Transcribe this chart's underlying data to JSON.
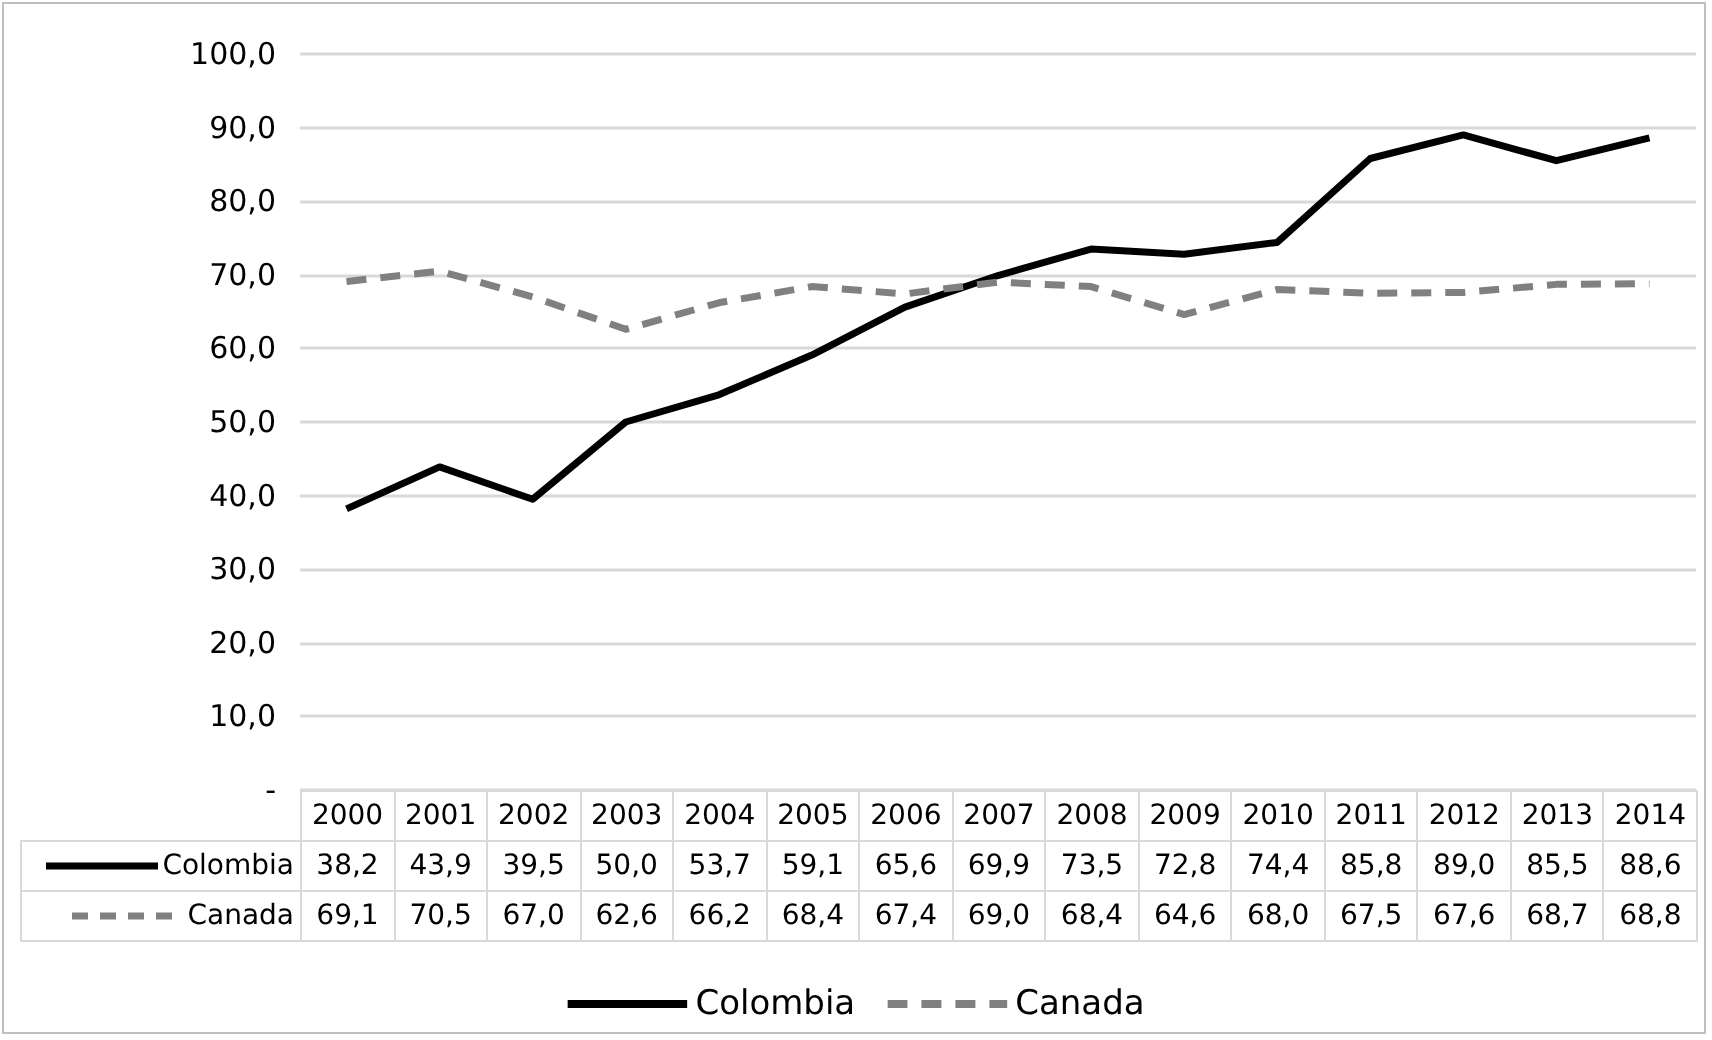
{
  "chart_data": {
    "type": "line",
    "categories": [
      "2000",
      "2001",
      "2002",
      "2003",
      "2004",
      "2005",
      "2006",
      "2007",
      "2008",
      "2009",
      "2010",
      "2011",
      "2012",
      "2013",
      "2014"
    ],
    "series": [
      {
        "name": "Colombia",
        "color": "#000000",
        "line_style": "solid",
        "values": [
          38.2,
          43.9,
          39.5,
          50.0,
          53.7,
          59.1,
          65.6,
          69.9,
          73.5,
          72.8,
          74.4,
          85.8,
          89.0,
          85.5,
          88.6
        ],
        "value_labels": [
          "38,2",
          "43,9",
          "39,5",
          "50,0",
          "53,7",
          "59,1",
          "65,6",
          "69,9",
          "73,5",
          "72,8",
          "74,4",
          "85,8",
          "89,0",
          "85,5",
          "88,6"
        ]
      },
      {
        "name": "Canada",
        "color": "#808080",
        "line_style": "dashed",
        "values": [
          69.1,
          70.5,
          67.0,
          62.6,
          66.2,
          68.4,
          67.4,
          69.0,
          68.4,
          64.6,
          68.0,
          67.5,
          67.6,
          68.7,
          68.8
        ],
        "value_labels": [
          "69,1",
          "70,5",
          "67,0",
          "62,6",
          "66,2",
          "68,4",
          "67,4",
          "69,0",
          "68,4",
          "64,6",
          "68,0",
          "67,5",
          "67,6",
          "68,7",
          "68,8"
        ]
      }
    ],
    "ylim": [
      0,
      100
    ],
    "yticks": [
      {
        "value": 0,
        "label": "-"
      },
      {
        "value": 10,
        "label": "10,0"
      },
      {
        "value": 20,
        "label": "20,0"
      },
      {
        "value": 30,
        "label": "30,0"
      },
      {
        "value": 40,
        "label": "40,0"
      },
      {
        "value": 50,
        "label": "50,0"
      },
      {
        "value": 60,
        "label": "60,0"
      },
      {
        "value": 70,
        "label": "70,0"
      },
      {
        "value": 80,
        "label": "80,0"
      },
      {
        "value": 90,
        "label": "90,0"
      },
      {
        "value": 100,
        "label": "100,0"
      }
    ],
    "grid": "y",
    "legend": "bottom",
    "marker": "none"
  }
}
